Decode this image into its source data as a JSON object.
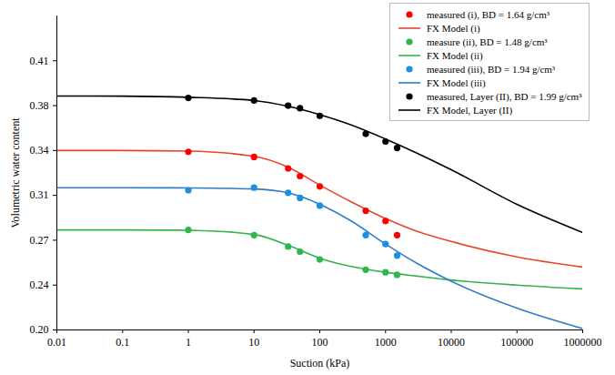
{
  "chart_data": {
    "type": "line",
    "x_label": "Suction (kPa)",
    "y_label": "Volumetric water content",
    "log": "x",
    "grid": false,
    "legend": "top-right",
    "xlim": [
      0.01,
      1000000
    ],
    "xticks": [
      0.01,
      0.1,
      1,
      10,
      100,
      1000,
      10000,
      100000,
      1000000
    ],
    "ylim": [
      0.2,
      0.445
    ],
    "yticks": [
      {
        "value": 0.2,
        "label": "0.20"
      },
      {
        "value": 0.235,
        "label": "0.24"
      },
      {
        "value": 0.27,
        "label": "0.27"
      },
      {
        "value": 0.305,
        "label": "0.31"
      },
      {
        "value": 0.34,
        "label": "0.34"
      },
      {
        "value": 0.375,
        "label": "0.38"
      },
      {
        "value": 0.41,
        "label": "0.41"
      }
    ],
    "series": [
      {
        "name": "measured (i), BD = 1.64 g/cm³",
        "type": "scatter",
        "marker": "circle",
        "color": "#ff0000",
        "x": [
          1,
          10,
          33,
          50,
          100,
          500,
          1000,
          1500
        ],
        "values": [
          0.339,
          0.335,
          0.326,
          0.32,
          0.312,
          0.293,
          0.285,
          0.274
        ]
      },
      {
        "name": "FX Model (i)",
        "type": "line",
        "line_style": "solid",
        "color": "#e8452c",
        "x": [
          0.01,
          0.1,
          1,
          10,
          33,
          100,
          300,
          1000,
          3000,
          10000,
          100000,
          1000000
        ],
        "values": [
          0.34,
          0.34,
          0.3395,
          0.3355,
          0.327,
          0.313,
          0.3,
          0.287,
          0.277,
          0.269,
          0.257,
          0.249
        ]
      },
      {
        "name": "measure (ii), BD = 1.48 g/cm³",
        "type": "scatter",
        "marker": "circle",
        "color": "#2eb84b",
        "x": [
          1,
          10,
          33,
          50,
          100,
          500,
          1000,
          1500
        ],
        "values": [
          0.278,
          0.274,
          0.265,
          0.261,
          0.255,
          0.247,
          0.245,
          0.243
        ]
      },
      {
        "name": "FX Model (ii)",
        "type": "line",
        "line_style": "solid",
        "color": "#33b34a",
        "x": [
          0.01,
          0.1,
          1,
          10,
          33,
          100,
          300,
          1000,
          3000,
          10000,
          100000,
          1000000
        ],
        "values": [
          0.278,
          0.278,
          0.2778,
          0.2745,
          0.266,
          0.256,
          0.2495,
          0.245,
          0.242,
          0.239,
          0.235,
          0.232
        ]
      },
      {
        "name": "measured (iii), BD = 1.94 g/cm³",
        "type": "scatter",
        "marker": "circle",
        "color": "#1e8fe0",
        "x": [
          1,
          10,
          33,
          50,
          100,
          500,
          1000,
          1500
        ],
        "values": [
          0.309,
          0.311,
          0.307,
          0.303,
          0.297,
          0.274,
          0.267,
          0.258
        ]
      },
      {
        "name": "FX Model (iii)",
        "type": "line",
        "line_style": "solid",
        "color": "#2e7dc6",
        "x": [
          0.01,
          0.1,
          1,
          10,
          33,
          100,
          300,
          1000,
          3000,
          10000,
          100000,
          1000000
        ],
        "values": [
          0.311,
          0.311,
          0.3108,
          0.31,
          0.307,
          0.298,
          0.285,
          0.267,
          0.252,
          0.238,
          0.217,
          0.201
        ]
      },
      {
        "name": "measured, Layer (II), BD = 1.99 g/cm³",
        "type": "scatter",
        "marker": "circle",
        "color": "#000000",
        "x": [
          1,
          10,
          33,
          50,
          100,
          500,
          1000,
          1500
        ],
        "values": [
          0.381,
          0.379,
          0.375,
          0.373,
          0.367,
          0.353,
          0.347,
          0.342
        ]
      },
      {
        "name": "FX Model, Layer (II)",
        "type": "line",
        "line_style": "solid",
        "color": "#000000",
        "x": [
          0.01,
          0.1,
          1,
          10,
          33,
          100,
          300,
          1000,
          3000,
          10000,
          100000,
          1000000
        ],
        "values": [
          0.3825,
          0.3824,
          0.3815,
          0.379,
          0.3745,
          0.368,
          0.36,
          0.349,
          0.338,
          0.325,
          0.298,
          0.276
        ]
      }
    ]
  }
}
